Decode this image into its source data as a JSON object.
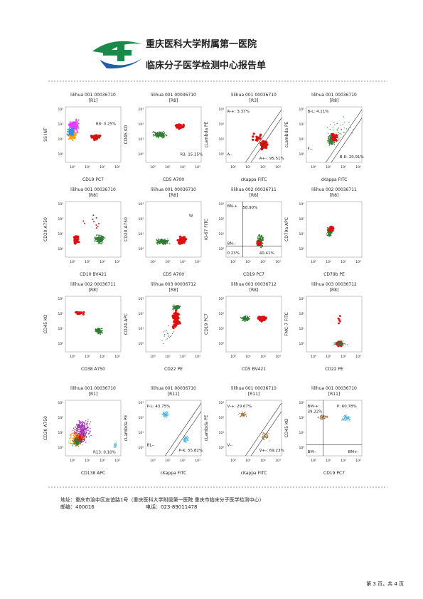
{
  "header": {
    "hospital": "重庆医科大学附属第一医院",
    "report_title": "临床分子医学检测中心报告单"
  },
  "axis_ticks": [
    "10⁰",
    "10¹",
    "10²",
    "10³"
  ],
  "plots": [
    {
      "title": "lilihua 001 00036710",
      "gate": "[R1]",
      "x_label": "CD19 PC7",
      "y_label": "SS INT",
      "gates": [
        "R8: 0.25%"
      ]
    },
    {
      "title": "lilihua 001 00036710",
      "gate": "[R8]",
      "x_label": "CD5 A700",
      "y_label": "CD45 KO",
      "gates": [
        "R3: 15.25%"
      ]
    },
    {
      "title": "lilihua 001 00036710",
      "gate": "[R3]",
      "x_label": "cKappa FITC",
      "y_label": "cLambda PE",
      "gates": [
        "A-+: 3.37%",
        "A--",
        "A+-: 95.51%"
      ]
    },
    {
      "title": "lilihua 001 00036710",
      "gate": "[R8]",
      "x_label": "cKappa FITC",
      "y_label": "cLambda PE",
      "gates": [
        "B-L: 4.11%",
        "F--",
        "B-K: 20.91%"
      ]
    },
    {
      "title": "lilihua 001 00036710",
      "gate": "[R8]",
      "x_label": "CD10 BV421",
      "y_label": "CD20 A750",
      "gates": []
    },
    {
      "title": "lilihua 001 00036710",
      "gate": "[R8]",
      "x_label": "CD5 A700",
      "y_label": "CD20 A750",
      "gates": [
        "W"
      ]
    },
    {
      "title": "lilihua 002 00036711",
      "gate": "[R8]",
      "x_label": "CD19 PC7",
      "y_label": "Ki-67 FITC",
      "gates": [
        "BN-+",
        "58.90%",
        "BN--",
        "0.23%",
        "40.41%"
      ]
    },
    {
      "title": "lilihua 002 00036711",
      "gate": "[R8]",
      "x_label": "CD79b PE",
      "y_label": "CD79a APC",
      "gates": []
    },
    {
      "title": "lilihua 002 00036711",
      "gate": "[R8]",
      "x_label": "CD38 A750",
      "y_label": "CD45 KO",
      "gates": []
    },
    {
      "title": "lilihua 003 00036712",
      "gate": "[R8]",
      "x_label": "CD22 PE",
      "y_label": "CD24 APC",
      "gates": []
    },
    {
      "title": "lilihua 003 00036712",
      "gate": "[R8]",
      "x_label": "CD5 BV421",
      "y_label": "CD19 PC7",
      "gates": []
    },
    {
      "title": "lilihua 003 00036712",
      "gate": "[R8]",
      "x_label": "CD22 PE",
      "y_label": "FMC-7 FITC",
      "gates": []
    },
    {
      "title": "lilihua 001 00036710",
      "gate": "[R1]",
      "x_label": "CD138 APC",
      "y_label": "CD20 A750",
      "gates": [
        "R13: 0.10%"
      ]
    },
    {
      "title": "lilihua 001 00036710",
      "gate": "[R11]",
      "x_label": "cKappa FITC",
      "y_label": "cLambda PE",
      "gates": [
        "P-L: 43.75%",
        "BL--",
        "P-K: 55.82%"
      ]
    },
    {
      "title": "lilihua 001 00036710",
      "gate": "[R11]",
      "x_label": "cKappa FITC",
      "y_label": "cLambda PE",
      "gates": [
        "V-+: 29.67%",
        "V--",
        "V+-: 69.23%"
      ]
    },
    {
      "title": "lilihua 001 00036710",
      "gate": "[R11]",
      "x_label": "CD19 PC7",
      "y_label": "CD45 KO",
      "gates": [
        "BM-+:",
        "39.22%",
        "P: 60.78%",
        "BM--",
        "BM+-"
      ]
    }
  ],
  "footer": {
    "address": "地址：重庆市渝中区友谊路1号（重庆医科大学附属第一医院 重庆市临床分子医学检测中心）",
    "postcode": "邮编：400016",
    "phone": "电话：023-89011478",
    "page": "第 3 页，共 4 页"
  }
}
